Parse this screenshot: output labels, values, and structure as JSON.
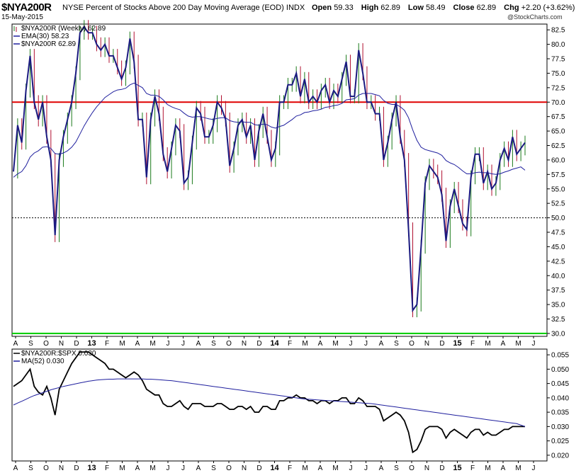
{
  "header": {
    "symbol": "$NYA200R",
    "description": "NYSE Percent of Stocks Above 200 Day Moving Average (EOD) INDX",
    "date": "15-May-2015",
    "brand": "@StockCharts.com",
    "ohlc": {
      "open_label": "Open",
      "open": "59.33",
      "high_label": "High",
      "high": "62.89",
      "low_label": "Low",
      "low": "58.49",
      "close_label": "Close",
      "close": "62.89",
      "chg_label": "Chg",
      "chg": "+2.20 (+3.62%)"
    }
  },
  "colors": {
    "price": "#1a1a80",
    "ema": "#1f1f9e",
    "up_bar": "#1a7a1a",
    "down_bar": "#b01030",
    "resistance": "#e00000",
    "support": "#00cc00",
    "ratio": "#000000",
    "ma": "#1f1f9e"
  },
  "chart_data": [
    {
      "type": "line",
      "title": "$NYA200R",
      "legend": [
        "$NYA200R (Weekly) 62.89",
        "EMA(30) 58.23",
        "$NYA200R 62.89"
      ],
      "legend_position": "top-left",
      "ylim": [
        29.5,
        83.5
      ],
      "y_ticks": [
        "82.5",
        "80.0",
        "77.5",
        "75.0",
        "72.5",
        "70.0",
        "67.5",
        "65.0",
        "62.5",
        "60.0",
        "57.5",
        "55.0",
        "52.5",
        "50.0",
        "47.5",
        "45.0",
        "42.5",
        "40.0",
        "37.5",
        "35.0",
        "32.5",
        "30.0"
      ],
      "x_labels": [
        "A",
        "S",
        "O",
        "N",
        "D",
        "13",
        "F",
        "M",
        "A",
        "M",
        "J",
        "J",
        "A",
        "S",
        "O",
        "N",
        "D",
        "14",
        "F",
        "M",
        "A",
        "M",
        "J",
        "J",
        "A",
        "S",
        "O",
        "N",
        "D",
        "15",
        "F",
        "M",
        "A",
        "M",
        "J"
      ],
      "grid": false,
      "reference_lines": [
        {
          "value": 70,
          "color": "red"
        },
        {
          "value": 50,
          "style": "dotted",
          "color": "black"
        },
        {
          "value": 30,
          "color": "green"
        }
      ],
      "close": [
        58,
        66,
        63,
        72,
        78,
        70,
        67,
        70,
        64,
        60,
        47,
        60,
        64,
        67,
        70,
        75,
        82,
        83,
        82,
        82,
        80,
        79,
        80,
        78,
        78,
        76,
        74,
        76,
        81,
        77,
        67,
        67,
        57,
        67,
        71,
        68,
        61,
        58,
        62,
        66,
        65,
        56,
        57,
        63,
        69,
        68,
        64,
        64,
        66,
        70,
        69,
        67,
        59,
        62,
        66,
        67,
        64,
        66,
        60,
        65,
        68,
        64,
        60,
        62,
        70,
        70,
        73,
        73,
        75,
        71,
        74,
        70,
        71,
        70,
        72,
        73,
        70,
        72,
        71,
        74,
        77,
        71,
        71,
        79,
        75,
        70,
        70,
        68,
        68,
        60,
        63,
        67,
        70,
        64,
        60,
        48,
        34,
        35,
        45,
        56,
        59,
        58,
        57,
        54,
        46,
        52,
        55,
        52,
        49,
        48,
        57,
        61,
        61,
        56,
        58,
        55,
        56,
        60,
        62,
        60,
        64,
        61,
        62,
        63
      ],
      "ema": [
        57,
        57.6,
        58,
        59,
        60.5,
        61.2,
        61.6,
        62.2,
        62.3,
        62,
        61.1,
        61,
        61.2,
        61.6,
        62.2,
        63.1,
        64.5,
        65.9,
        67.1,
        68.2,
        69.2,
        70,
        70.8,
        71.3,
        71.8,
        72.1,
        72.2,
        72.4,
        73,
        73.3,
        72.9,
        72.5,
        71.5,
        71.2,
        71.2,
        71,
        70.4,
        69.6,
        69.2,
        68.9,
        68.7,
        68.1,
        67.6,
        67.4,
        67.5,
        67.5,
        67.3,
        67.1,
        67,
        67.2,
        67.3,
        67.3,
        66.8,
        66.6,
        66.5,
        66.6,
        66.5,
        66.5,
        66.1,
        66,
        66.2,
        66.1,
        65.7,
        65.5,
        65.8,
        66,
        66.5,
        67,
        67.6,
        67.8,
        68.2,
        68.3,
        68.5,
        68.6,
        68.8,
        69.1,
        69.2,
        69.4,
        69.5,
        69.8,
        70.4,
        70.5,
        70.6,
        71.2,
        71.5,
        71.5,
        71.5,
        71.3,
        71.1,
        70.3,
        69.8,
        69.6,
        69.6,
        69.2,
        68.6,
        67.3,
        65.2,
        63.4,
        62.2,
        61.8,
        61.6,
        61.4,
        61.2,
        60.8,
        59.9,
        59.5,
        59.2,
        58.7,
        58.1,
        57.6,
        57.6,
        57.8,
        57.9,
        57.8,
        57.8,
        57.6,
        57.5,
        57.6,
        57.9,
        58.1,
        58.4,
        58.6,
        58.8,
        58.23
      ]
    },
    {
      "type": "line",
      "title": "$NYA200R:$SPX",
      "legend": [
        "$NYA200R:$SPX 0.030",
        "MA(52) 0.030"
      ],
      "legend_position": "top-left",
      "ylim": [
        0.018,
        0.057
      ],
      "y_ticks": [
        "0.055",
        "0.050",
        "0.045",
        "0.040",
        "0.035",
        "0.030",
        "0.025",
        "0.020"
      ],
      "x_labels": [
        "A",
        "S",
        "O",
        "N",
        "D",
        "13",
        "F",
        "M",
        "A",
        "M",
        "J",
        "J",
        "A",
        "S",
        "O",
        "N",
        "D",
        "14",
        "F",
        "M",
        "A",
        "M",
        "J",
        "J",
        "A",
        "S",
        "O",
        "N",
        "D",
        "15",
        "F",
        "M",
        "A",
        "M",
        "J"
      ],
      "ratio": [
        0.044,
        0.045,
        0.046,
        0.048,
        0.05,
        0.044,
        0.042,
        0.041,
        0.044,
        0.04,
        0.034,
        0.043,
        0.046,
        0.049,
        0.052,
        0.054,
        0.056,
        0.056,
        0.056,
        0.055,
        0.054,
        0.053,
        0.052,
        0.05,
        0.05,
        0.049,
        0.048,
        0.047,
        0.048,
        0.049,
        0.048,
        0.046,
        0.043,
        0.042,
        0.041,
        0.041,
        0.038,
        0.037,
        0.037,
        0.038,
        0.039,
        0.037,
        0.036,
        0.038,
        0.038,
        0.038,
        0.037,
        0.037,
        0.037,
        0.038,
        0.038,
        0.037,
        0.036,
        0.036,
        0.037,
        0.037,
        0.036,
        0.037,
        0.035,
        0.035,
        0.037,
        0.037,
        0.036,
        0.036,
        0.039,
        0.039,
        0.04,
        0.04,
        0.041,
        0.04,
        0.04,
        0.039,
        0.039,
        0.038,
        0.039,
        0.039,
        0.038,
        0.039,
        0.039,
        0.04,
        0.04,
        0.038,
        0.038,
        0.04,
        0.039,
        0.037,
        0.037,
        0.037,
        0.036,
        0.032,
        0.033,
        0.034,
        0.035,
        0.034,
        0.032,
        0.028,
        0.021,
        0.022,
        0.025,
        0.029,
        0.03,
        0.03,
        0.03,
        0.029,
        0.026,
        0.028,
        0.029,
        0.028,
        0.027,
        0.026,
        0.028,
        0.029,
        0.029,
        0.027,
        0.028,
        0.027,
        0.027,
        0.028,
        0.029,
        0.029,
        0.03,
        0.03,
        0.03,
        0.03
      ],
      "ma": [
        0.0375,
        0.0382,
        0.0388,
        0.0395,
        0.0402,
        0.0408,
        0.0413,
        0.0418,
        0.0423,
        0.0428,
        0.0432,
        0.0436,
        0.044,
        0.0443,
        0.0446,
        0.0449,
        0.0452,
        0.0455,
        0.0458,
        0.046,
        0.0462,
        0.0463,
        0.0464,
        0.0465,
        0.0465,
        0.0466,
        0.0466,
        0.0466,
        0.0466,
        0.0466,
        0.0466,
        0.0466,
        0.0465,
        0.0465,
        0.0464,
        0.0463,
        0.0462,
        0.0461,
        0.046,
        0.0458,
        0.0456,
        0.0454,
        0.0452,
        0.045,
        0.0448,
        0.0446,
        0.0444,
        0.0442,
        0.044,
        0.0438,
        0.0436,
        0.0434,
        0.0432,
        0.043,
        0.0428,
        0.0426,
        0.0424,
        0.0422,
        0.042,
        0.0418,
        0.0416,
        0.0414,
        0.0412,
        0.041,
        0.0408,
        0.0406,
        0.0404,
        0.0402,
        0.04,
        0.0398,
        0.0396,
        0.0395,
        0.0394,
        0.0393,
        0.0392,
        0.0391,
        0.039,
        0.0389,
        0.0388,
        0.0387,
        0.0386,
        0.0385,
        0.0384,
        0.0383,
        0.0382,
        0.0381,
        0.038,
        0.0378,
        0.0376,
        0.0374,
        0.0372,
        0.037,
        0.0368,
        0.0366,
        0.0364,
        0.0362,
        0.036,
        0.0358,
        0.0356,
        0.0354,
        0.0352,
        0.035,
        0.0348,
        0.0346,
        0.0344,
        0.0342,
        0.034,
        0.0338,
        0.0336,
        0.0334,
        0.0332,
        0.033,
        0.0328,
        0.0326,
        0.0324,
        0.0322,
        0.032,
        0.0318,
        0.0316,
        0.0314,
        0.0312,
        0.031,
        0.0305,
        0.03
      ]
    }
  ]
}
